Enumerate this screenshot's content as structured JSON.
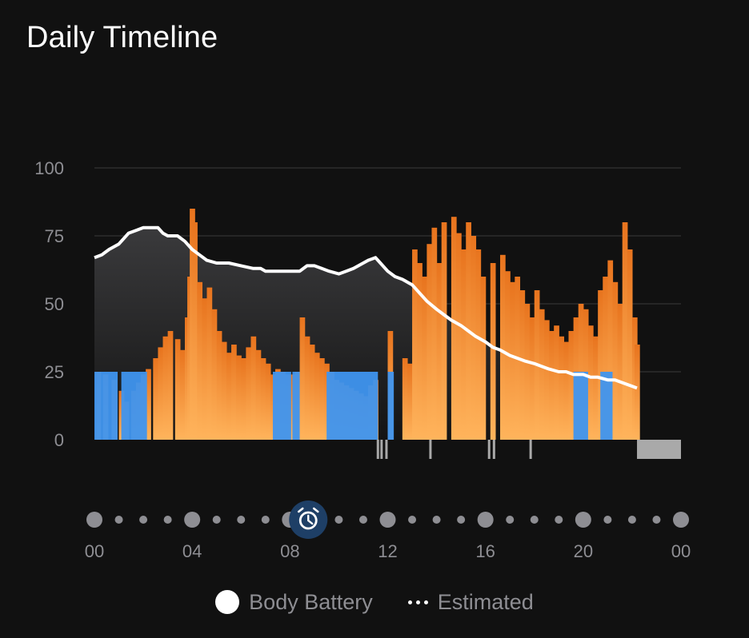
{
  "title": "Daily Timeline",
  "legend": {
    "body_battery_label": "Body Battery",
    "estimated_label": "Estimated"
  },
  "colors": {
    "background": "#111111",
    "grid": "#3a3a3c",
    "axis_text": "#8e8e93",
    "stress_top": "#e8741e",
    "stress_bottom": "#ffb45c",
    "rest": "#3f95ef",
    "line": "#ffffff",
    "area_top": "#3a3a3c",
    "area_bottom": "#1a1a1a",
    "no_data": "#a9a9a9",
    "alarm_ring": "#1e3f66",
    "alarm_fill": "#0d2740"
  },
  "icons": [
    "alarm-clock-icon"
  ],
  "chart_data": {
    "type": "area",
    "xlim": [
      0,
      24
    ],
    "ylim": [
      0,
      100
    ],
    "yticks": [
      "0",
      "25",
      "50",
      "75",
      "100"
    ],
    "ytick_values": [
      0,
      25,
      50,
      75,
      100
    ],
    "xtick_labels": [
      "00",
      "04",
      "08",
      "12",
      "16",
      "20",
      "00"
    ],
    "xtick_hours": [
      0,
      4,
      8,
      12,
      16,
      20,
      24
    ],
    "alarm_hour": 8.75,
    "estimated_line": {
      "name": "Body Battery",
      "x": [
        0,
        0.3,
        0.6,
        1.0,
        1.4,
        1.7,
        2.0,
        2.6,
        2.8,
        3.0,
        3.4,
        3.7,
        4.0,
        4.3,
        4.6,
        5.0,
        5.5,
        6.0,
        6.5,
        6.8,
        7.0,
        7.5,
        8.0,
        8.4,
        8.7,
        9.0,
        9.3,
        9.6,
        10.0,
        10.3,
        10.6,
        11.0,
        11.2,
        11.5,
        11.7,
        12.0,
        12.3,
        12.6,
        13.0,
        13.3,
        13.6,
        14.0,
        14.3,
        14.6,
        15.0,
        15.3,
        15.6,
        16.0,
        16.3,
        16.6,
        17.0,
        17.3,
        17.6,
        18.0,
        18.3,
        18.6,
        19.0,
        19.3,
        19.6,
        20.0,
        20.3,
        20.6,
        21.0,
        21.3,
        21.6,
        21.9,
        22.2
      ],
      "y": [
        67,
        68,
        70,
        72,
        76,
        77,
        78,
        78,
        76,
        75,
        75,
        73,
        70,
        68,
        66,
        65,
        65,
        64,
        63,
        63,
        62,
        62,
        62,
        62,
        64,
        64,
        63,
        62,
        61,
        62,
        63,
        65,
        66,
        67,
        65,
        62,
        60,
        59,
        57,
        54,
        51,
        48,
        46,
        44,
        42,
        40,
        38,
        36,
        34,
        33,
        31,
        30,
        29,
        28,
        27,
        26,
        25,
        25,
        24,
        24,
        23,
        23,
        22,
        22,
        21,
        20,
        19
      ]
    },
    "stress_ranges": [
      [
        0.05,
        25
      ],
      [
        0.35,
        24
      ],
      [
        0.7,
        22
      ],
      [
        1.0,
        18
      ],
      [
        1.2,
        14
      ],
      [
        1.5,
        18
      ],
      [
        1.7,
        21
      ],
      [
        1.9,
        24
      ],
      [
        2.1,
        26
      ],
      [
        2.4,
        30
      ],
      [
        2.6,
        34
      ],
      [
        2.8,
        38
      ],
      [
        3.0,
        40
      ],
      [
        3.3,
        37
      ],
      [
        3.5,
        33
      ],
      [
        3.7,
        45
      ],
      [
        3.8,
        60
      ],
      [
        3.9,
        85
      ],
      [
        4.0,
        80
      ],
      [
        4.2,
        58
      ],
      [
        4.4,
        52
      ],
      [
        4.6,
        56
      ],
      [
        4.8,
        48
      ],
      [
        5.0,
        40
      ],
      [
        5.2,
        36
      ],
      [
        5.4,
        32
      ],
      [
        5.6,
        35
      ],
      [
        5.8,
        31
      ],
      [
        6.0,
        30
      ],
      [
        6.2,
        34
      ],
      [
        6.4,
        38
      ],
      [
        6.6,
        33
      ],
      [
        6.8,
        30
      ],
      [
        7.0,
        28
      ],
      [
        7.2,
        24
      ],
      [
        7.4,
        26
      ],
      [
        7.6,
        25
      ],
      [
        7.8,
        24
      ],
      [
        8.0,
        24
      ],
      [
        8.2,
        25
      ],
      [
        8.4,
        45
      ],
      [
        8.6,
        38
      ],
      [
        8.8,
        35
      ],
      [
        9.0,
        32
      ],
      [
        9.2,
        30
      ],
      [
        9.4,
        28
      ],
      [
        9.6,
        25
      ],
      [
        9.8,
        22
      ],
      [
        10.0,
        21
      ],
      [
        10.2,
        20
      ],
      [
        10.4,
        19
      ],
      [
        10.6,
        18
      ],
      [
        10.8,
        17
      ],
      [
        11.0,
        16
      ],
      [
        11.2,
        20
      ],
      [
        11.4,
        22
      ],
      [
        11.6,
        0
      ],
      [
        12.0,
        40
      ],
      [
        12.3,
        0
      ],
      [
        12.6,
        30
      ],
      [
        12.8,
        28
      ],
      [
        13.0,
        70
      ],
      [
        13.2,
        65
      ],
      [
        13.4,
        60
      ],
      [
        13.6,
        72
      ],
      [
        13.8,
        78
      ],
      [
        14.0,
        65
      ],
      [
        14.2,
        80
      ],
      [
        14.4,
        0
      ],
      [
        14.6,
        82
      ],
      [
        14.8,
        76
      ],
      [
        15.0,
        70
      ],
      [
        15.2,
        80
      ],
      [
        15.4,
        75
      ],
      [
        15.6,
        70
      ],
      [
        15.8,
        60
      ],
      [
        16.0,
        0
      ],
      [
        16.2,
        65
      ],
      [
        16.4,
        0
      ],
      [
        16.6,
        68
      ],
      [
        16.8,
        62
      ],
      [
        17.0,
        58
      ],
      [
        17.2,
        60
      ],
      [
        17.4,
        55
      ],
      [
        17.6,
        50
      ],
      [
        17.8,
        45
      ],
      [
        18.0,
        55
      ],
      [
        18.2,
        48
      ],
      [
        18.4,
        44
      ],
      [
        18.6,
        40
      ],
      [
        18.8,
        42
      ],
      [
        19.0,
        38
      ],
      [
        19.2,
        36
      ],
      [
        19.4,
        40
      ],
      [
        19.6,
        45
      ],
      [
        19.8,
        50
      ],
      [
        20.0,
        48
      ],
      [
        20.2,
        42
      ],
      [
        20.4,
        38
      ],
      [
        20.6,
        55
      ],
      [
        20.8,
        60
      ],
      [
        21.0,
        66
      ],
      [
        21.2,
        58
      ],
      [
        21.4,
        50
      ],
      [
        21.6,
        80
      ],
      [
        21.8,
        70
      ],
      [
        22.0,
        45
      ],
      [
        22.1,
        35
      ]
    ],
    "rest_ranges": [
      [
        0.0,
        0.95
      ],
      [
        1.1,
        2.15
      ],
      [
        7.3,
        8.05
      ],
      [
        8.1,
        8.4
      ],
      [
        9.5,
        11.6
      ],
      [
        12.0,
        12.25
      ],
      [
        19.6,
        20.2
      ],
      [
        20.7,
        21.2
      ]
    ],
    "gap_markers": [
      11.55,
      11.7,
      11.9,
      13.7,
      16.1,
      16.3,
      17.8
    ],
    "no_data_range": [
      22.2,
      24
    ]
  }
}
